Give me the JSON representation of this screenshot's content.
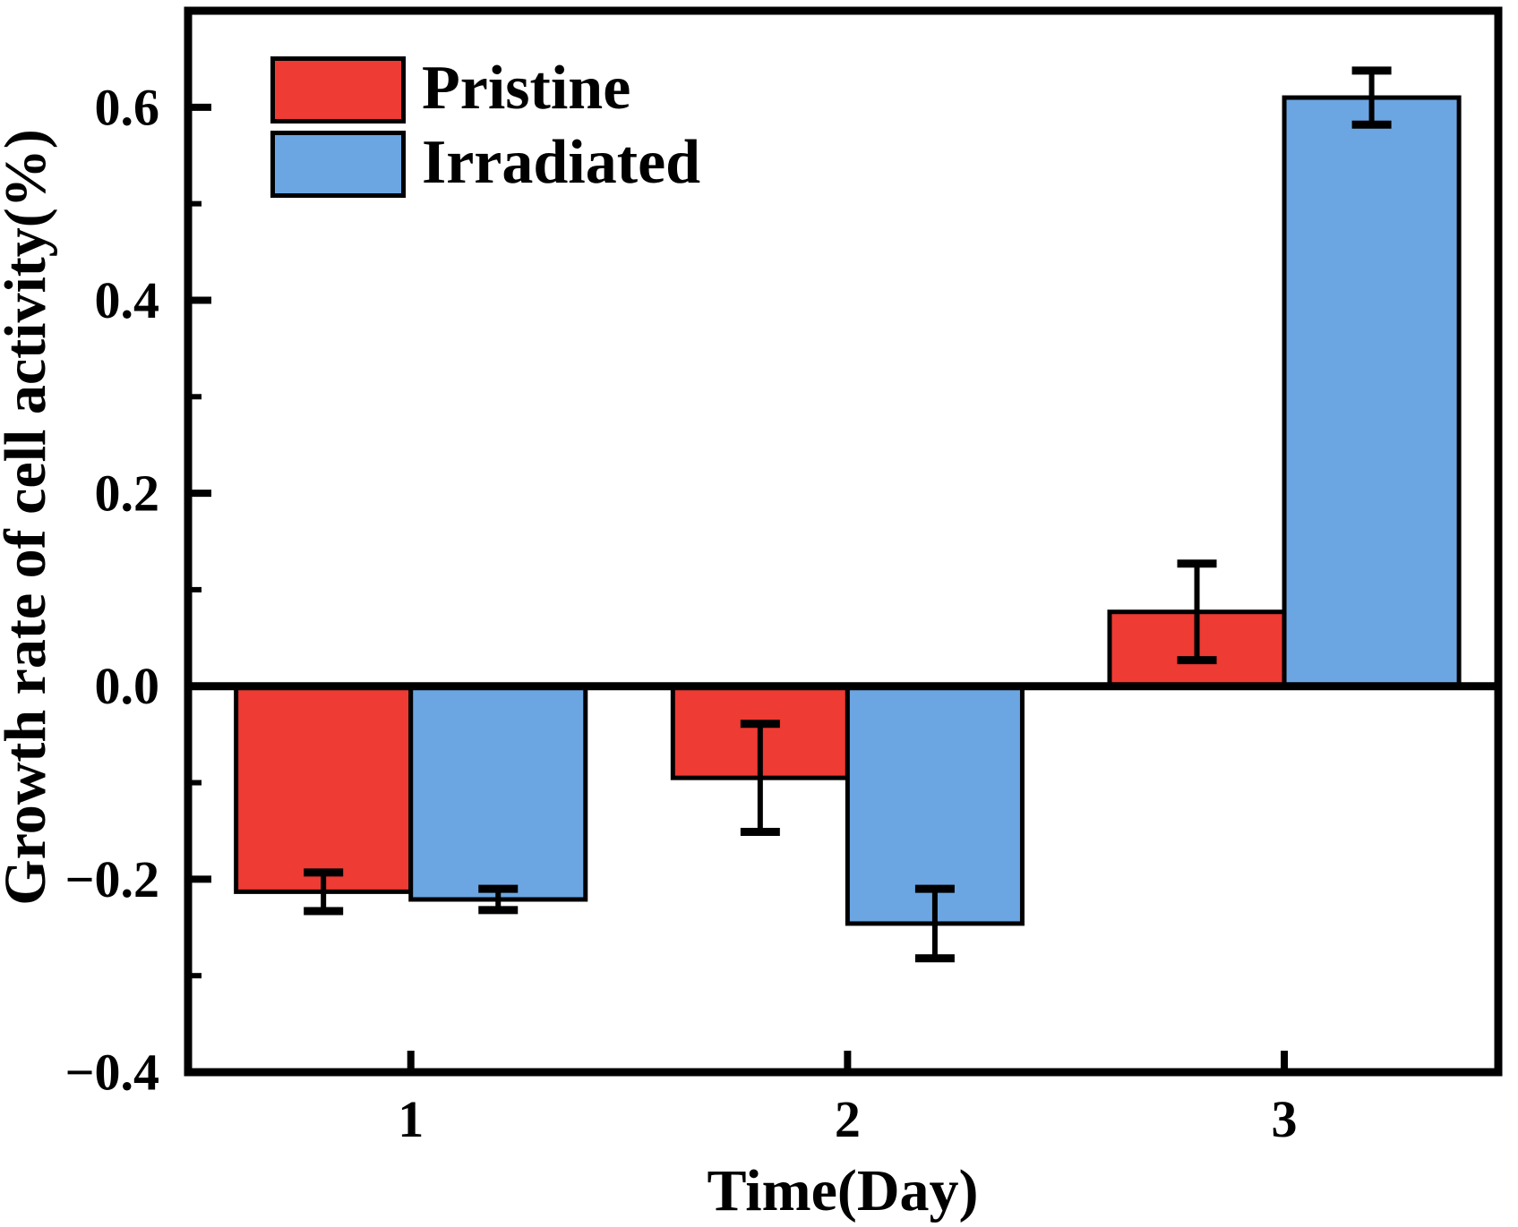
{
  "figure": {
    "background_color": "#ffffff",
    "frame_color": "#000000",
    "text_color": "#000000"
  },
  "chart_data": {
    "type": "bar",
    "title": "",
    "xlabel": "Time(Day)",
    "ylabel": "Growth rate of cell activity(%)",
    "categories": [
      1,
      2,
      3
    ],
    "x_tick_labels": [
      "1",
      "2",
      "3"
    ],
    "y_tick_labels": [
      "−0.4",
      "−0.2",
      "0.0",
      "0.2",
      "0.4",
      "0.6"
    ],
    "y_major_ticks": [
      -0.4,
      -0.2,
      0.0,
      0.2,
      0.4,
      0.6
    ],
    "y_minor_ticks": [
      -0.3,
      -0.1,
      0.1,
      0.3,
      0.5
    ],
    "ylim": [
      -0.4,
      0.7
    ],
    "xlim": [
      0.49,
      3.49
    ],
    "bar_width": 0.4,
    "grid": false,
    "legend_position": "top-left-inside",
    "error_bars": true,
    "series": [
      {
        "name": "Pristine",
        "color": "#ee3b33",
        "values": [
          -0.213,
          -0.095,
          0.077
        ],
        "errors": [
          0.02,
          0.056,
          0.05
        ]
      },
      {
        "name": "Irradiated",
        "color": "#6ba6e2",
        "values": [
          -0.221,
          -0.246,
          0.61
        ],
        "errors": [
          0.011,
          0.036,
          0.028
        ]
      }
    ]
  }
}
